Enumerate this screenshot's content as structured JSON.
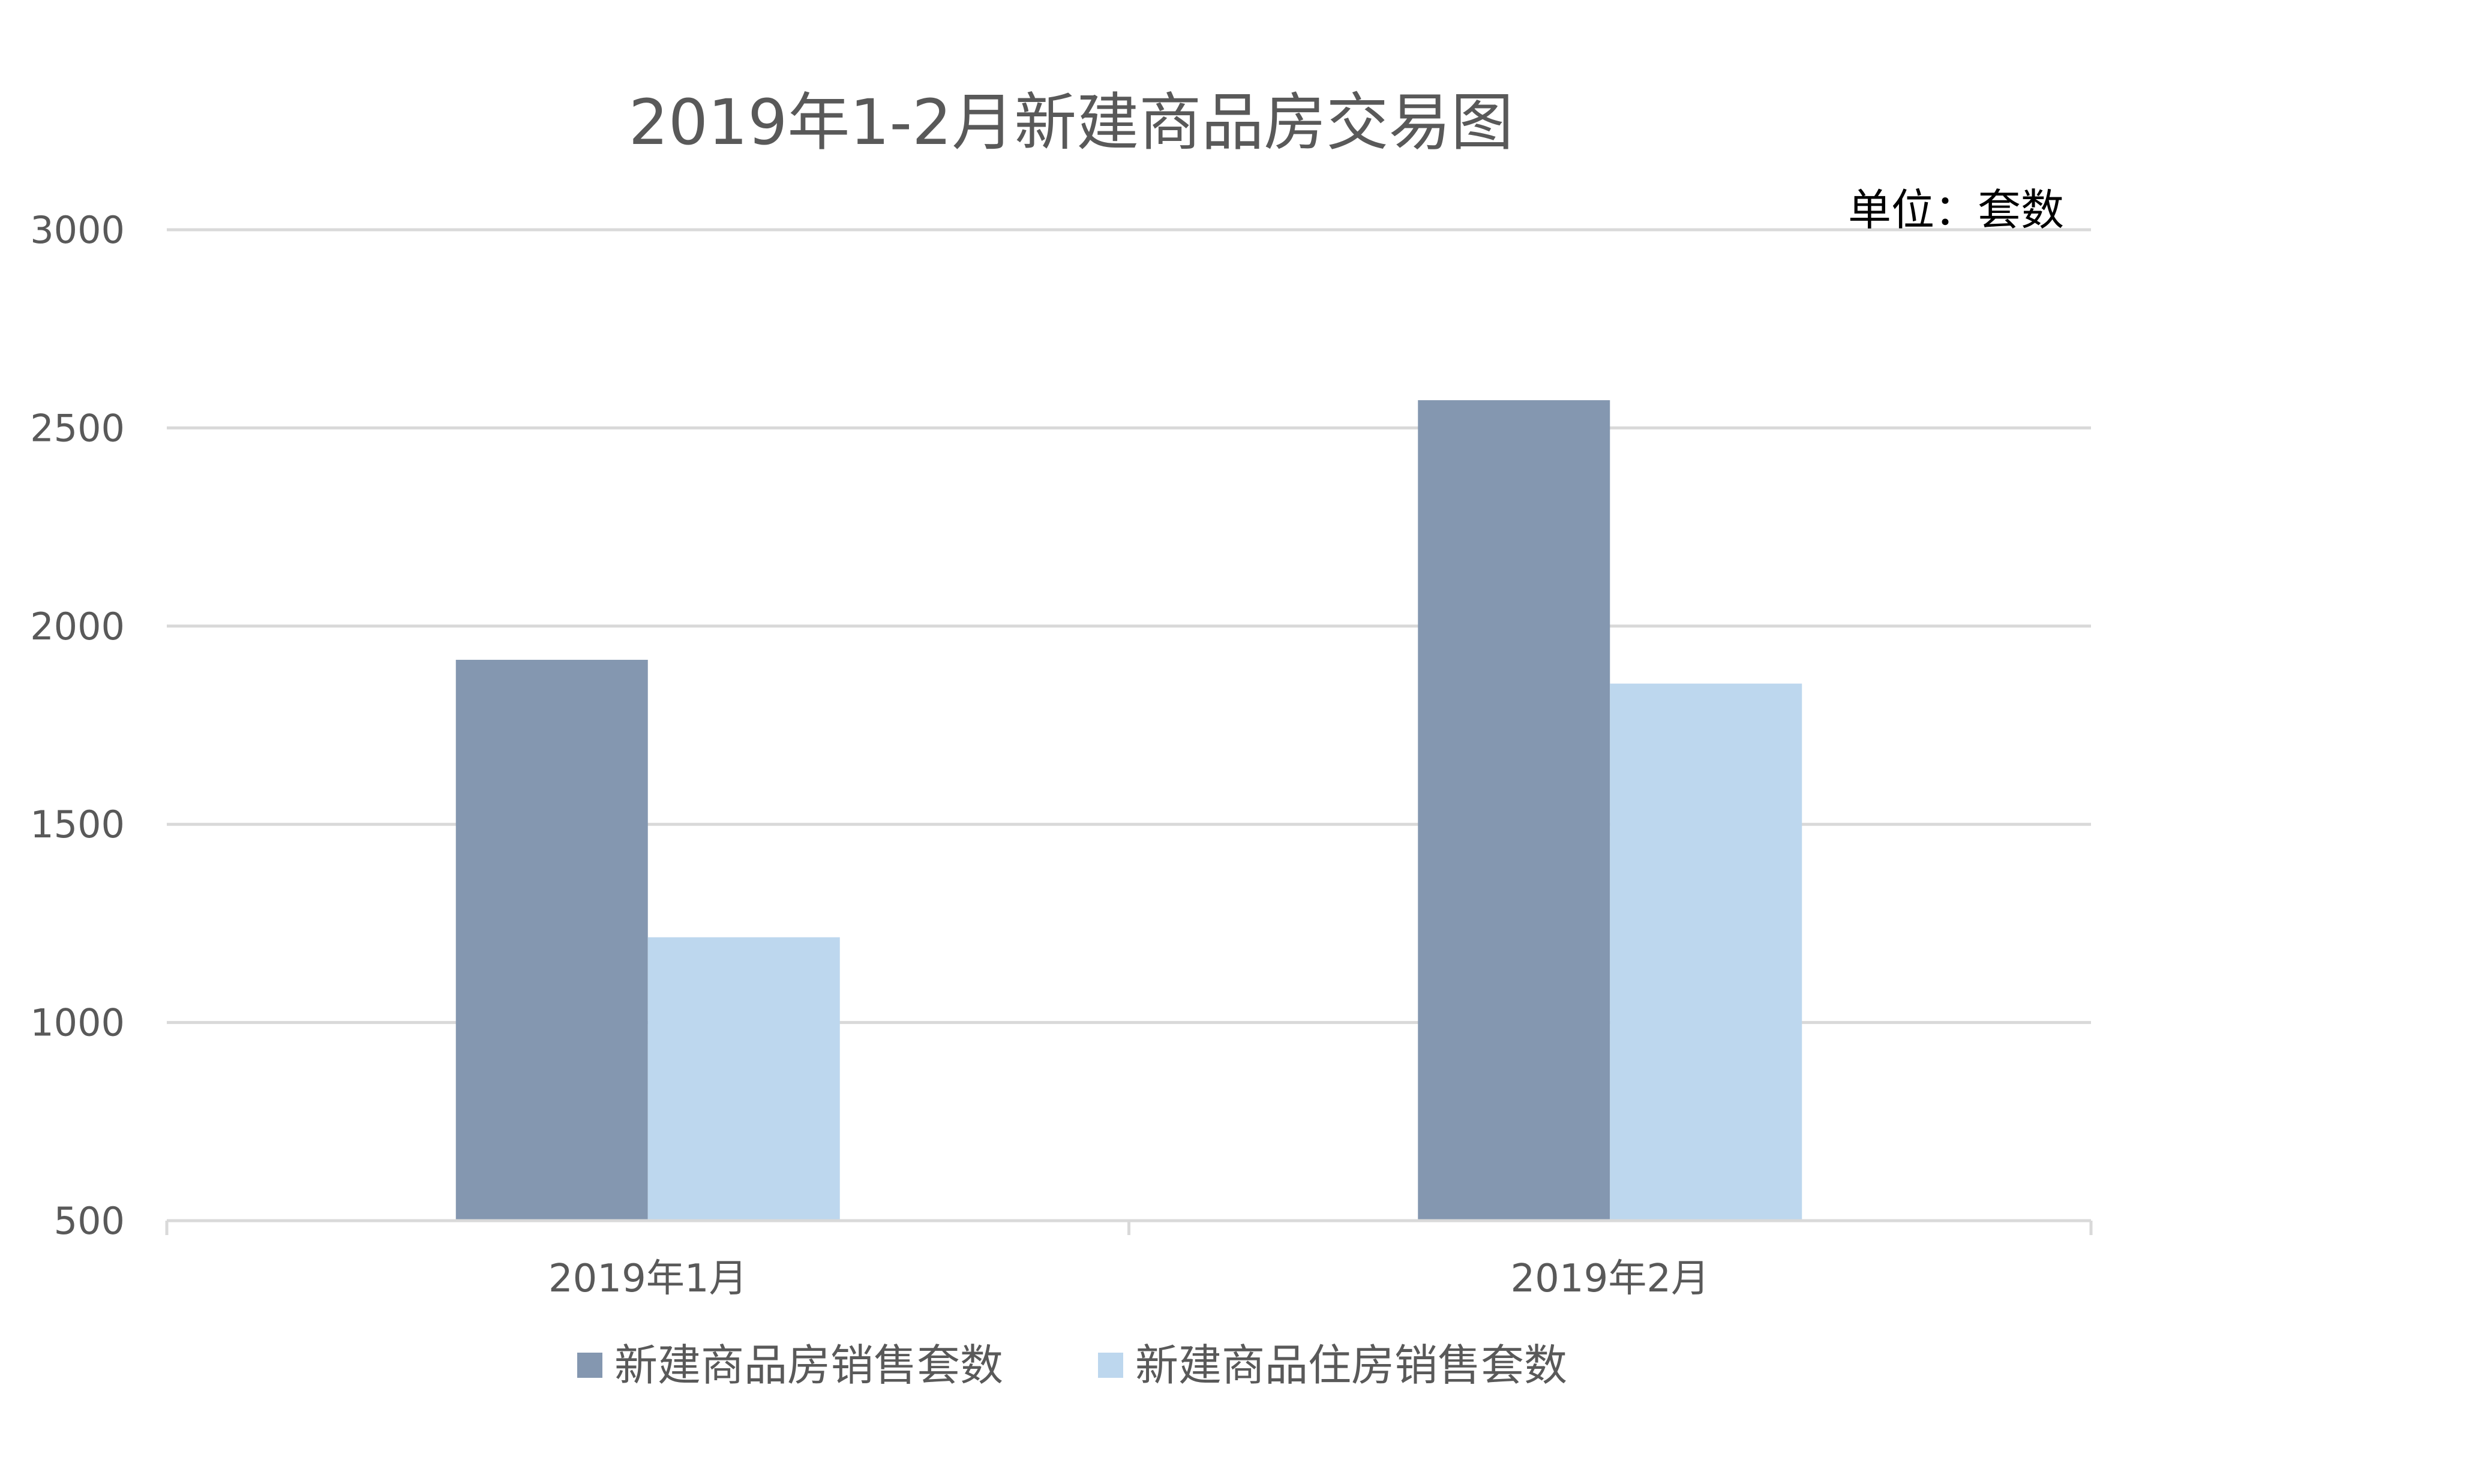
{
  "chart_data": {
    "type": "bar",
    "title": "2019年1-2月新建商品房交易图",
    "unit_note": "单位：套数",
    "categories": [
      "2019年1月",
      "2019年2月"
    ],
    "series": [
      {
        "name": "新建商品房销售套数",
        "values": [
          1915,
          2570
        ],
        "color": "#8497B0"
      },
      {
        "name": "新建商品住房销售套数",
        "values": [
          1215,
          1855
        ],
        "color": "#BDD7EE"
      }
    ],
    "ylim": [
      500,
      3000
    ],
    "yticks": [
      "500",
      "1000",
      "1500",
      "2000",
      "2500",
      "3000"
    ],
    "grid": true,
    "legend": "bottom"
  }
}
